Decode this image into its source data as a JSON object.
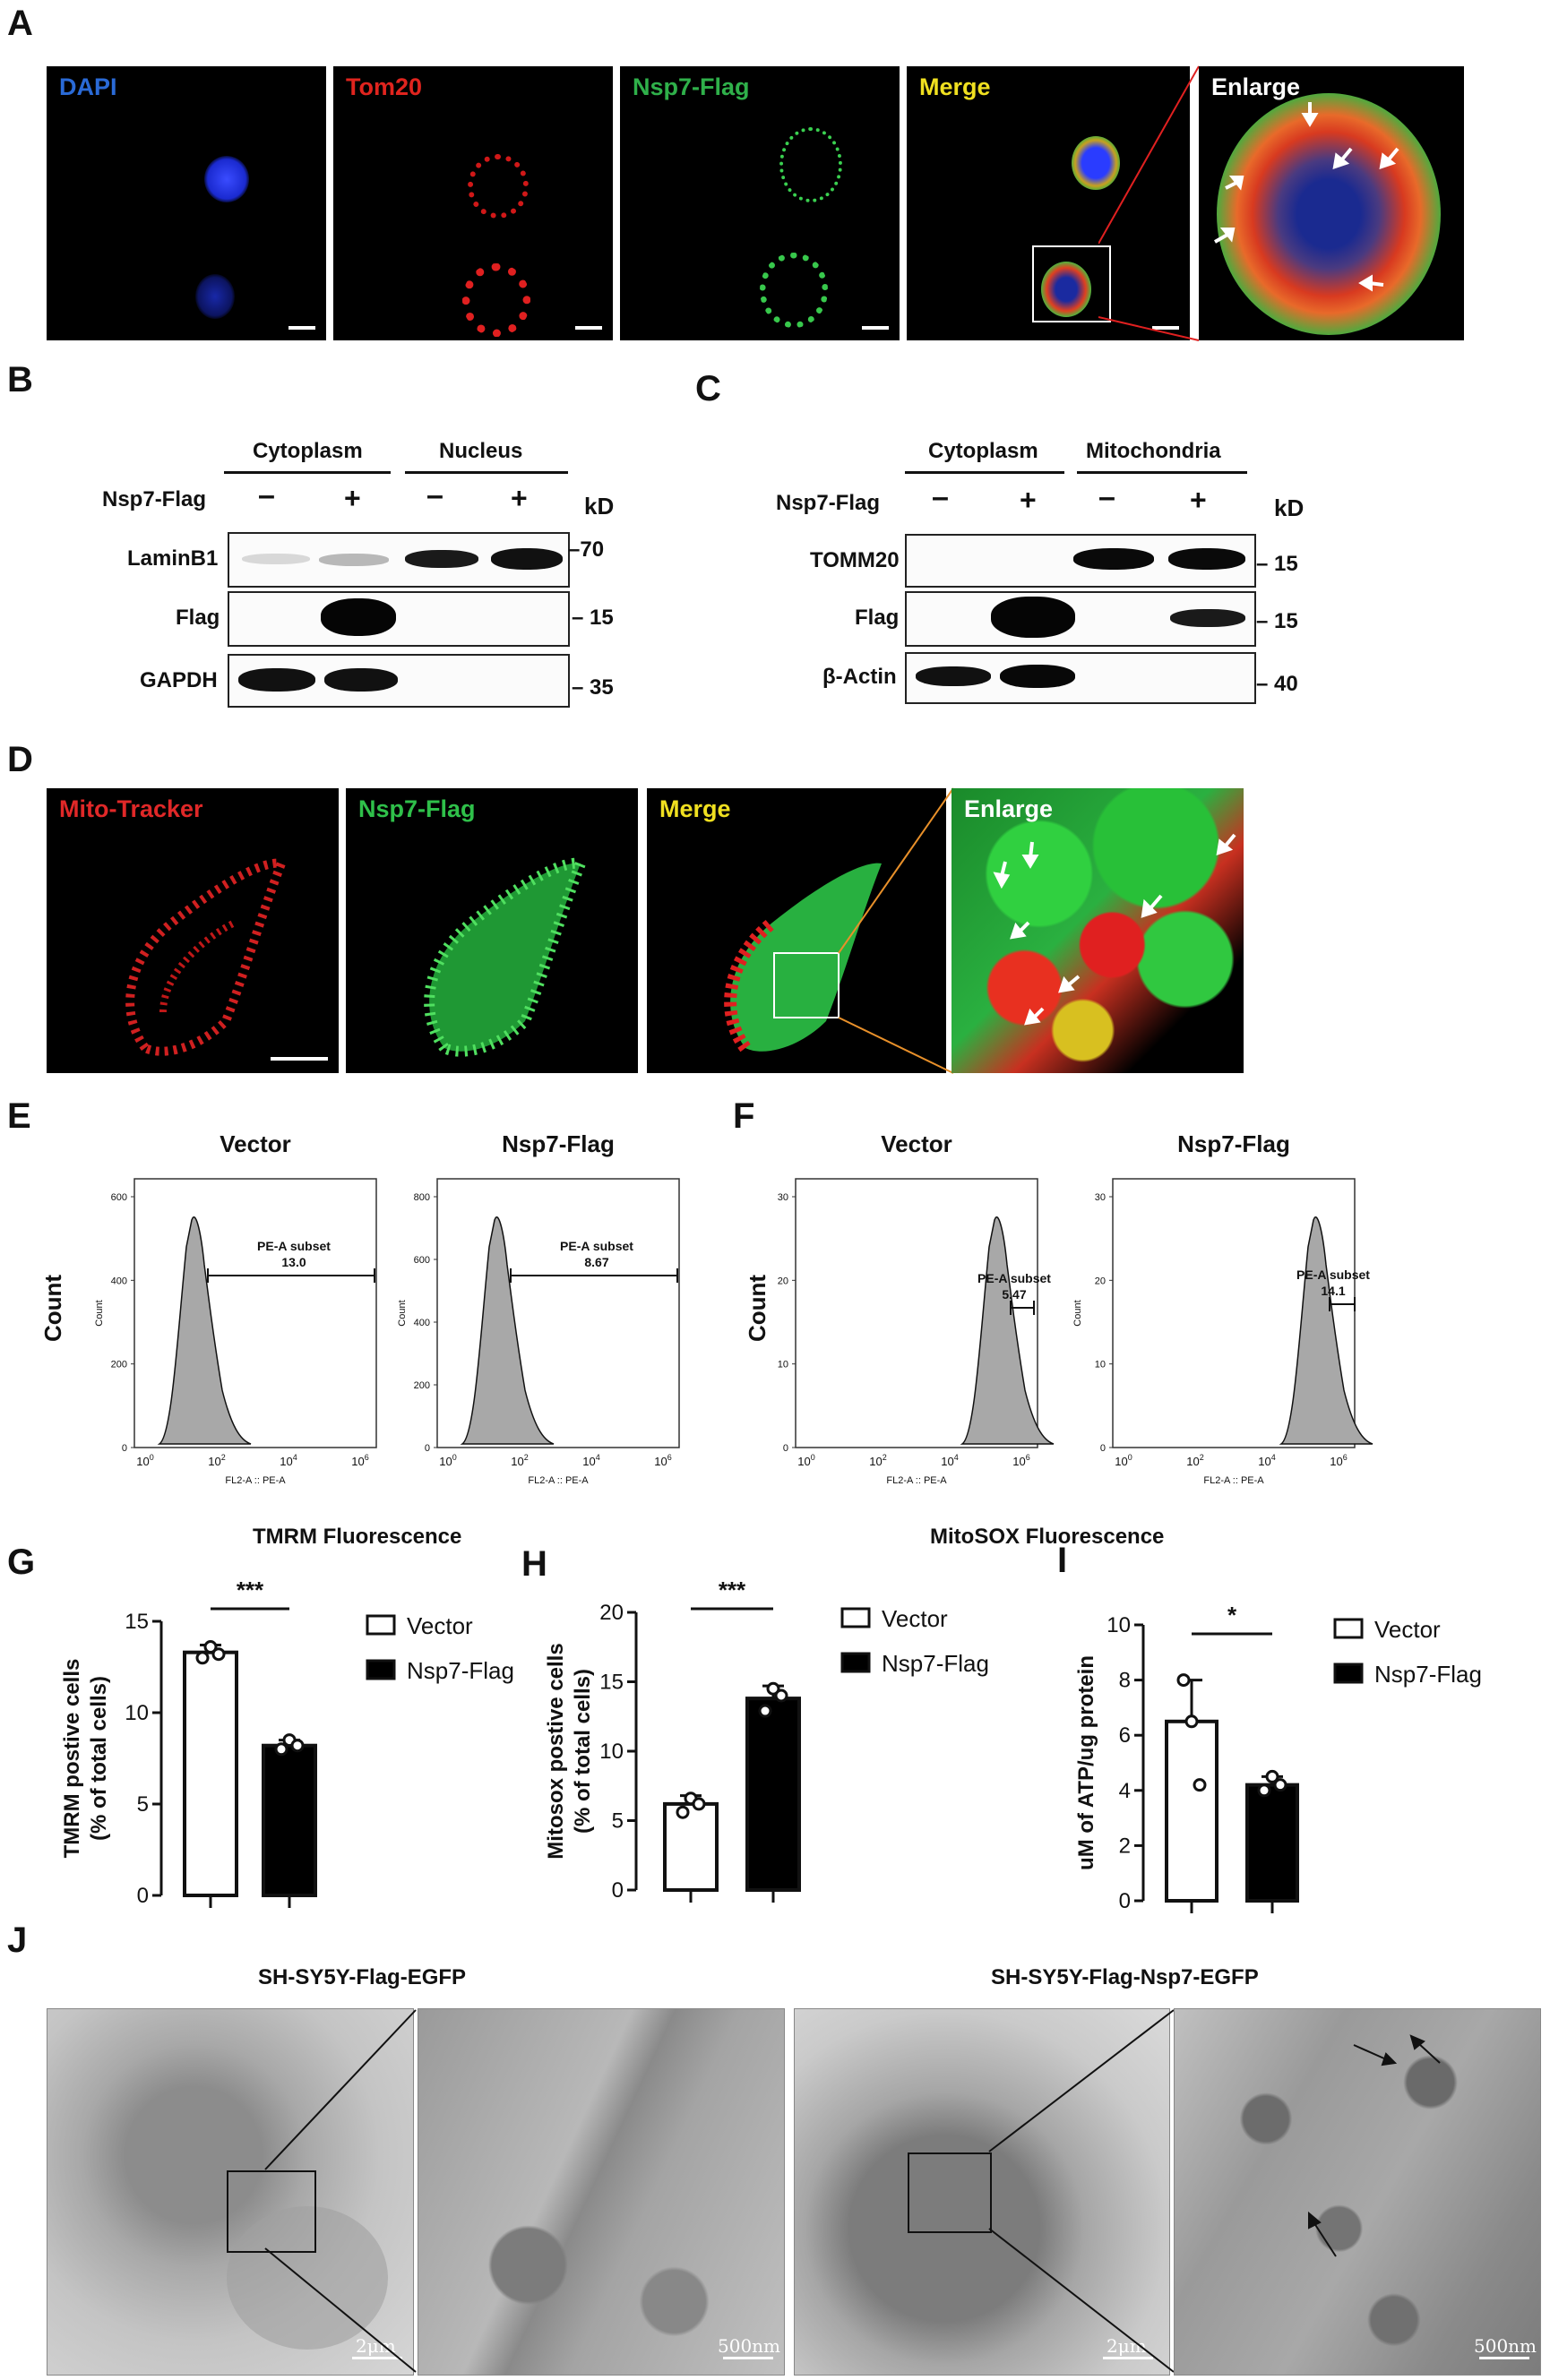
{
  "panels": {
    "A": "A",
    "B": "B",
    "C": "C",
    "D": "D",
    "E": "E",
    "F": "F",
    "G": "G",
    "H": "H",
    "I": "I",
    "J": "J"
  },
  "panelA": {
    "dapi": "DAPI",
    "tom20": "Tom20",
    "nsp7": "Nsp7-Flag",
    "merge": "Merge",
    "enlarge": "Enlarge"
  },
  "panelB": {
    "cytoplasm": "Cytoplasm",
    "nucleus": "Nucleus",
    "row_label": "Nsp7-Flag",
    "signs": [
      "–",
      "+",
      "–",
      "+"
    ],
    "kd": "kD",
    "rows": [
      "LaminB1",
      "Flag",
      "GAPDH"
    ],
    "markers": [
      "70",
      "15",
      "35"
    ]
  },
  "panelC": {
    "cytoplasm": "Cytoplasm",
    "mitochondria": "Mitochondria",
    "row_label": "Nsp7-Flag",
    "signs": [
      "–",
      "+",
      "–",
      "+"
    ],
    "kd": "kD",
    "rows": [
      "TOMM20",
      "Flag",
      "β-Actin"
    ],
    "markers": [
      "15",
      "15",
      "40"
    ]
  },
  "panelD": {
    "mito": "Mito-Tracker",
    "nsp7": "Nsp7-Flag",
    "merge": "Merge",
    "enlarge": "Enlarge"
  },
  "panelE": {
    "titles": [
      "Vector",
      "Nsp7-Flag"
    ],
    "count": "Count",
    "xlabel": "TMRM Fluorescence",
    "axis_small": "FL2-A :: PE-A",
    "count_small": "Count",
    "gates": [
      {
        "name": "PE-A subset",
        "value": "13.0"
      },
      {
        "name": "PE-A subset",
        "value": "8.67"
      }
    ],
    "yticks": [
      [
        "600",
        "400",
        "200",
        "0"
      ],
      [
        "800",
        "600",
        "400",
        "200",
        "0"
      ]
    ]
  },
  "panelF": {
    "titles": [
      "Vector",
      "Nsp7-Flag"
    ],
    "count": "Count",
    "xlabel": "MitoSOX Fluorescence",
    "axis_small": "FL2-A :: PE-A",
    "count_small": "Count",
    "gates": [
      {
        "name": "PE-A subset",
        "value": "5.47"
      },
      {
        "name": "PE-A subset",
        "value": "14.1"
      }
    ],
    "yticks": [
      [
        "30",
        "20",
        "10",
        "0"
      ],
      [
        "30",
        "20",
        "10",
        "0"
      ]
    ]
  },
  "legend": {
    "vector": "Vector",
    "nsp7": "Nsp7-Flag"
  },
  "panelJ": {
    "left_title": "SH-SY5Y-Flag-EGFP",
    "right_title": "SH-SY5Y-Flag-Nsp7-EGFP",
    "scale_2um": "2μm",
    "scale_500nm": "500nm"
  },
  "chart_data": [
    {
      "type": "bar",
      "panel": "G",
      "categories": [
        "Vector",
        "Nsp7-Flag"
      ],
      "values": [
        13.3,
        8.2
      ],
      "errors": [
        0.4,
        0.3
      ],
      "points": [
        [
          13.0,
          13.6,
          13.2
        ],
        [
          8.0,
          8.5,
          8.2
        ]
      ],
      "ylabel": "TMRM postive cells\n(% of total cells)",
      "ylim": [
        0,
        15
      ],
      "yticks": [
        0,
        5,
        10,
        15
      ],
      "significance": "***",
      "colors": [
        "#ffffff",
        "#000000"
      ]
    },
    {
      "type": "bar",
      "panel": "H",
      "categories": [
        "Vector",
        "Nsp7-Flag"
      ],
      "values": [
        6.2,
        13.8
      ],
      "errors": [
        0.6,
        0.9
      ],
      "points": [
        [
          5.6,
          6.6,
          6.2
        ],
        [
          12.9,
          14.5,
          14.0
        ]
      ],
      "ylabel": "Mitosox postive cells\n(% of total cells)",
      "ylim": [
        0,
        20
      ],
      "yticks": [
        0,
        5,
        10,
        15,
        20
      ],
      "significance": "***",
      "colors": [
        "#ffffff",
        "#000000"
      ]
    },
    {
      "type": "bar",
      "panel": "I",
      "categories": [
        "Vector",
        "Nsp7-Flag"
      ],
      "values": [
        6.5,
        4.2
      ],
      "errors": [
        1.5,
        0.3
      ],
      "points": [
        [
          8.0,
          6.5,
          4.2
        ],
        [
          4.0,
          4.5,
          4.2
        ]
      ],
      "ylabel": "uM of ATP/ug protein",
      "ylim": [
        0,
        10
      ],
      "yticks": [
        0,
        2,
        4,
        6,
        8,
        10
      ],
      "significance": "*",
      "colors": [
        "#ffffff",
        "#000000"
      ]
    }
  ]
}
